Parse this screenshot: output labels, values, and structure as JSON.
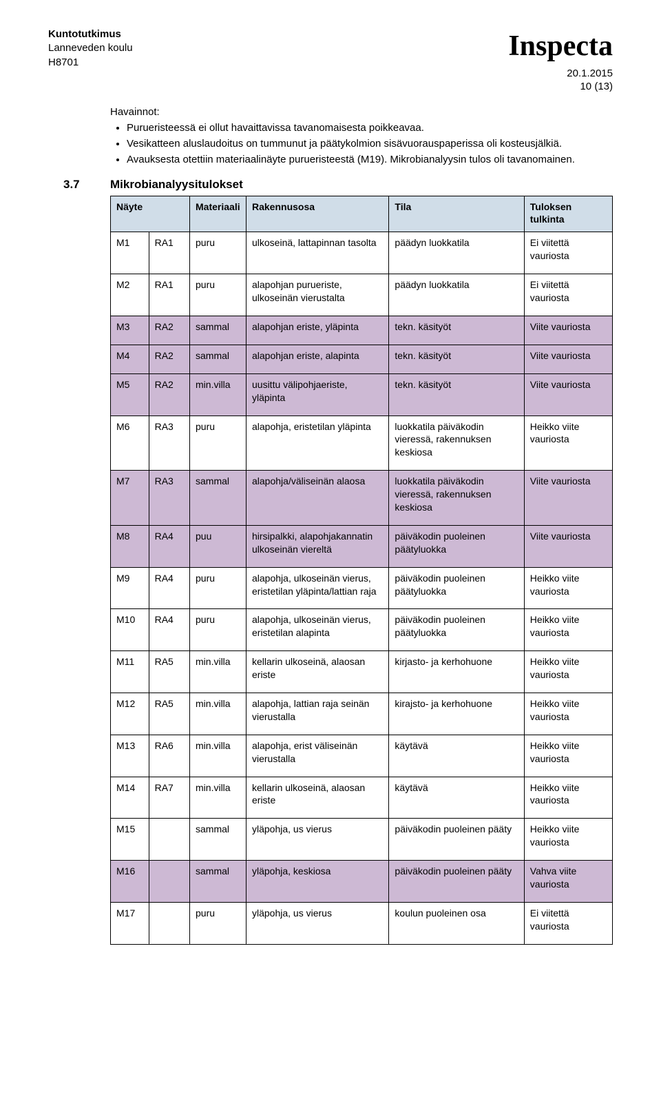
{
  "header": {
    "title": "Kuntotutkimus",
    "subtitle": "Lanneveden koulu",
    "code": "H8701",
    "logo": "Inspecta",
    "date": "20.1.2015",
    "pageinfo": "10 (13)"
  },
  "havainnot": {
    "title": "Havainnot:",
    "items": [
      "Purueristeessä ei ollut havaittavissa tavanomaisesta poikkeavaa.",
      "Vesikatteen aluslaudoitus on tummunut ja päätykolmion sisävuorauspaperissa oli kosteusjälkiä.",
      "Avauksesta otettiin materiaalinäyte purueristeestä (M19). Mikrobianalyysin tulos oli tavanomainen."
    ]
  },
  "section": {
    "num": "3.7",
    "title": "Mikrobianalyysitulokset"
  },
  "table": {
    "header_bg": "#d0dde8",
    "row_alt_bg": "#cdb9d4",
    "row_bg": "#ffffff",
    "columns": [
      "Näyte",
      "",
      "Materiaali",
      "Rakennusosa",
      "Tila",
      "Tuloksen tulkinta"
    ],
    "rows": [
      {
        "c": [
          "M1",
          "RA1",
          "puru",
          "ulkoseinä, lattapinnan tasolta",
          "päädyn luokkatila",
          "Ei viitettä vauriosta"
        ],
        "alt": false
      },
      {
        "c": [
          "M2",
          "RA1",
          "puru",
          "alapohjan purueriste, ulkoseinän vierustalta",
          "päädyn luokkatila",
          "Ei viitettä vauriosta"
        ],
        "alt": false
      },
      {
        "c": [
          "M3",
          "RA2",
          "sammal",
          "alapohjan eriste, yläpinta",
          "tekn. käsityöt",
          "Viite vauriosta"
        ],
        "alt": true
      },
      {
        "c": [
          "M4",
          "RA2",
          "sammal",
          "alapohjan eriste, alapinta",
          "tekn. käsityöt",
          "Viite vauriosta"
        ],
        "alt": true
      },
      {
        "c": [
          "M5",
          "RA2",
          "min.villa",
          "uusittu välipohjaeriste, yläpinta",
          "tekn. käsityöt",
          "Viite vauriosta"
        ],
        "alt": true
      },
      {
        "c": [
          "M6",
          "RA3",
          "puru",
          "alapohja, eristetilan yläpinta",
          "luokkatila päiväkodin vieressä, rakennuksen keskiosa",
          "Heikko viite vauriosta"
        ],
        "alt": false
      },
      {
        "c": [
          "M7",
          "RA3",
          "sammal",
          "alapohja/väliseinän alaosa",
          "luokkatila päiväkodin vieressä, rakennuksen keskiosa",
          "Viite vauriosta"
        ],
        "alt": true
      },
      {
        "c": [
          "M8",
          "RA4",
          "puu",
          "hirsipalkki, alapohjakannatin ulkoseinän viereltä",
          "päiväkodin puoleinen päätyluokka",
          "Viite vauriosta"
        ],
        "alt": true
      },
      {
        "c": [
          "M9",
          "RA4",
          "puru",
          "alapohja, ulkoseinän vierus, eristetilan yläpinta/lattian raja",
          "päiväkodin puoleinen päätyluokka",
          "Heikko viite vauriosta"
        ],
        "alt": false
      },
      {
        "c": [
          "M10",
          "RA4",
          "puru",
          "alapohja, ulkoseinän vierus, eristetilan alapinta",
          "päiväkodin puoleinen päätyluokka",
          "Heikko viite vauriosta"
        ],
        "alt": false
      },
      {
        "c": [
          "M11",
          "RA5",
          "min.villa",
          "kellarin ulkoseinä, alaosan eriste",
          "kirjasto- ja kerhohuone",
          "Heikko viite vauriosta"
        ],
        "alt": false
      },
      {
        "c": [
          "M12",
          "RA5",
          "min.villa",
          "alapohja, lattian raja seinän vierustalla",
          "kirajsto- ja kerhohuone",
          "Heikko viite vauriosta"
        ],
        "alt": false
      },
      {
        "c": [
          "M13",
          "RA6",
          "min.villa",
          "alapohja, erist väliseinän vierustalla",
          "käytävä",
          "Heikko viite vauriosta"
        ],
        "alt": false
      },
      {
        "c": [
          "M14",
          "RA7",
          "min.villa",
          "kellarin ulkoseinä, alaosan eriste",
          "käytävä",
          "Heikko viite vauriosta"
        ],
        "alt": false
      },
      {
        "c": [
          "M15",
          "",
          "sammal",
          "yläpohja, us vierus",
          "päiväkodin puoleinen pääty",
          "Heikko viite vauriosta"
        ],
        "alt": false
      },
      {
        "c": [
          "M16",
          "",
          "sammal",
          "yläpohja, keskiosa",
          "päiväkodin puoleinen pääty",
          "Vahva viite vauriosta"
        ],
        "alt": true
      },
      {
        "c": [
          "M17",
          "",
          "puru",
          "yläpohja, us vierus",
          "koulun puoleinen osa",
          "Ei viitettä vauriosta"
        ],
        "alt": false
      }
    ]
  }
}
